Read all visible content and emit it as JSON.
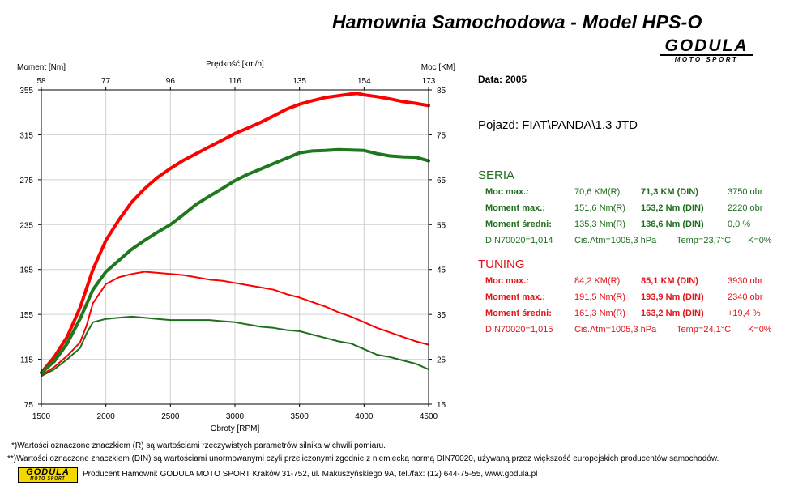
{
  "header": {
    "title": "Hamownia Samochodowa   -   Model HPS-O",
    "logo": {
      "name": "GODULA",
      "subtitle": "MOTO SPORT"
    }
  },
  "info": {
    "date_label": "Data: 2005",
    "vehicle": "Pojazd: FIAT\\PANDA\\1.3 JTD",
    "seria": {
      "title": "SERIA",
      "color": "#1e6e1e",
      "rows": [
        {
          "label": "Moc max.:",
          "r": "70,6 KM(R)",
          "din": "71,3 KM (DIN)",
          "extra": "3750 obr"
        },
        {
          "label": "Moment max.:",
          "r": "151,6 Nm(R)",
          "din": "153,2 Nm (DIN)",
          "extra": "2220 obr"
        },
        {
          "label": "Moment średni:",
          "r": "135,3 Nm(R)",
          "din": "136,6 Nm (DIN)",
          "extra": "0,0 %"
        }
      ],
      "conditions": {
        "din": "DIN70020=1,014",
        "atm": "Ciś.Atm=1005,3 hPa",
        "temp": "Temp=23,7°C",
        "k": "K=0%"
      }
    },
    "tuning": {
      "title": "TUNING",
      "color": "#e0141a",
      "rows": [
        {
          "label": "Moc max.:",
          "r": "84,2 KM(R)",
          "din": "85,1 KM (DIN)",
          "extra": "3930 obr"
        },
        {
          "label": "Moment max.:",
          "r": "191,5 Nm(R)",
          "din": "193,9 Nm (DIN)",
          "extra": "2340 obr"
        },
        {
          "label": "Moment średni:",
          "r": "161,3 Nm(R)",
          "din": "163,2 Nm (DIN)",
          "extra": "+19,4 %"
        }
      ],
      "conditions": {
        "din": "DIN70020=1,015",
        "atm": "Ciś.Atm=1005,3 hPa",
        "temp": "Temp=24,1°C",
        "k": "K=0%"
      }
    }
  },
  "footer": {
    "note1": "*)Wartości oznaczone znaczkiem (R) są wartościami rzeczywistych parametrów silnika w chwili pomiaru.",
    "note2": "**)Wartości oznaczone znaczkiem (DIN) są wartościami unormowanymi czyli przeliczonymi zgodnie z niemiecką normą DIN70020, używaną przez większość europejskich producentów samochodów.",
    "producer": "Producent Hamowni: GODULA MOTO SPORT Kraków 31-752, ul. Makuszyńskiego 9A, tel./fax: (12) 644-75-55, www.godula.pl"
  },
  "chart_data": {
    "type": "line",
    "xlabel": "Obroty [RPM]",
    "ylabel_left": "Moment [Nm]",
    "ylabel_right": "Moc [KM]",
    "top_axis_label": "Prędkość [km/h]",
    "xlim": [
      1500,
      4500
    ],
    "ylim_left": [
      75,
      355
    ],
    "ylim_right": [
      15,
      85
    ],
    "x_ticks": [
      "1500",
      "2000",
      "2500",
      "3000",
      "3500",
      "4000",
      "4500"
    ],
    "top_ticks": [
      "58",
      "77",
      "96",
      "116",
      "135",
      "154",
      "173"
    ],
    "left_ticks": [
      "355",
      "315",
      "275",
      "235",
      "195",
      "155",
      "115",
      "75"
    ],
    "right_ticks": [
      "85",
      "75",
      "65",
      "55",
      "45",
      "35",
      "25",
      "15"
    ],
    "grid": true,
    "series": [
      {
        "name": "TUNING",
        "quantity": "Moc [KM]",
        "axis": "right",
        "color": "#ff0000",
        "width": 4,
        "x": [
          1500,
          1600,
          1700,
          1800,
          1900,
          2000,
          2100,
          2200,
          2300,
          2400,
          2500,
          2600,
          2700,
          2800,
          2900,
          3000,
          3100,
          3200,
          3300,
          3400,
          3500,
          3600,
          3700,
          3800,
          3900,
          3950,
          4000,
          4100,
          4200,
          4300,
          4400,
          4500
        ],
        "y": [
          22,
          25.5,
          30,
          36.5,
          45,
          51.5,
          56,
          60,
          63,
          65.5,
          67.5,
          69.3,
          70.8,
          72.3,
          73.8,
          75.3,
          76.5,
          77.8,
          79.2,
          80.7,
          81.8,
          82.6,
          83.3,
          83.7,
          84.1,
          84.2,
          83.9,
          83.5,
          83.0,
          82.4,
          82.0,
          81.5
        ]
      },
      {
        "name": "SERIA",
        "quantity": "Moc [KM]",
        "axis": "right",
        "color": "#1e781e",
        "width": 4,
        "x": [
          1500,
          1600,
          1700,
          1800,
          1900,
          2000,
          2100,
          2200,
          2300,
          2400,
          2500,
          2600,
          2700,
          2800,
          2900,
          3000,
          3100,
          3200,
          3300,
          3400,
          3500,
          3600,
          3700,
          3800,
          3900,
          4000,
          4100,
          4200,
          4300,
          4400,
          4500
        ],
        "y": [
          22,
          24.5,
          28.5,
          34,
          40.5,
          44.5,
          47,
          49.5,
          51.5,
          53.3,
          55,
          57.2,
          59.5,
          61.3,
          63,
          64.8,
          66.2,
          67.4,
          68.6,
          69.8,
          71,
          71.4,
          71.5,
          71.7,
          71.6,
          71.5,
          70.8,
          70.3,
          70.1,
          70.0,
          69.2
        ]
      },
      {
        "name": "TUNING",
        "quantity": "Moment [Nm]",
        "axis": "left",
        "color": "#ff0000",
        "width": 2,
        "x": [
          1500,
          1600,
          1700,
          1800,
          1850,
          1900,
          2000,
          2100,
          2200,
          2300,
          2400,
          2500,
          2600,
          2700,
          2800,
          2900,
          3000,
          3100,
          3200,
          3300,
          3400,
          3500,
          3600,
          3700,
          3800,
          3900,
          4000,
          4100,
          4200,
          4300,
          4400,
          4500
        ],
        "y": [
          101,
          108,
          118,
          130,
          145,
          165,
          182,
          188,
          191,
          193,
          192,
          191,
          190,
          188,
          186,
          185,
          183,
          181,
          179,
          177,
          173,
          170,
          166,
          162,
          157,
          153,
          148,
          143,
          139,
          135,
          131,
          128
        ]
      },
      {
        "name": "SERIA",
        "quantity": "Moment [Nm]",
        "axis": "left",
        "color": "#1e6e1e",
        "width": 2,
        "x": [
          1500,
          1600,
          1700,
          1800,
          1850,
          1900,
          2000,
          2100,
          2200,
          2300,
          2400,
          2500,
          2600,
          2700,
          2800,
          2900,
          3000,
          3100,
          3200,
          3300,
          3400,
          3500,
          3600,
          3700,
          3800,
          3900,
          4000,
          4100,
          4200,
          4300,
          4400,
          4500
        ],
        "y": [
          100,
          106,
          115,
          125,
          138,
          148,
          151,
          152,
          153,
          152,
          151,
          150,
          150,
          150,
          150,
          149,
          148,
          146,
          144,
          143,
          141,
          140,
          137,
          134,
          131,
          129,
          124,
          119,
          117,
          114,
          111,
          106
        ]
      }
    ]
  }
}
